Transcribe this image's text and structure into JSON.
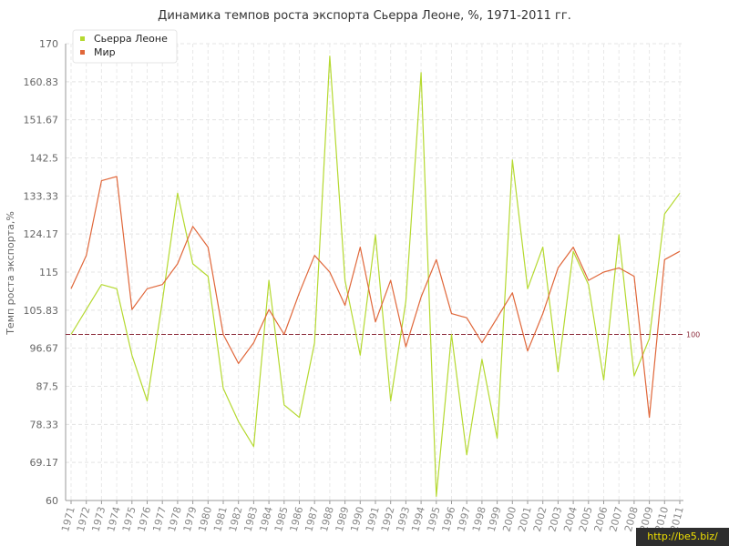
{
  "chart_data": {
    "type": "line",
    "title": "Динамика темпов роста экспорта Сьерра Леоне, %, 1971-2011 гг.",
    "ylabel": "Темп роста экспорта,%",
    "xlabel": "",
    "ylim": [
      60,
      170
    ],
    "yticks": [
      "60",
      "69.17",
      "78.33",
      "87.5",
      "96.67",
      "105.83",
      "115",
      "124.17",
      "133.33",
      "142.5",
      "151.67",
      "160.83",
      "170"
    ],
    "ytick_values": [
      60,
      69.17,
      78.33,
      87.5,
      96.67,
      105.83,
      115,
      124.17,
      133.33,
      142.5,
      151.67,
      160.83,
      170
    ],
    "x": [
      "1971",
      "1972",
      "1973",
      "1974",
      "1975",
      "1976",
      "1977",
      "1978",
      "1979",
      "1980",
      "1981",
      "1982",
      "1983",
      "1984",
      "1985",
      "1986",
      "1987",
      "1988",
      "1989",
      "1990",
      "1991",
      "1992",
      "1993",
      "1994",
      "1995",
      "1996",
      "1997",
      "1998",
      "1999",
      "2000",
      "2001",
      "2002",
      "2003",
      "2004",
      "2005",
      "2006",
      "2007",
      "2008",
      "2009",
      "2010",
      "2011"
    ],
    "reference_line": {
      "value": 100,
      "label": "100",
      "color": "#8b2a3a"
    },
    "grid": true,
    "legend_position": "top-left",
    "series": [
      {
        "name": "Сьерра Леоне",
        "color": "#b5d930",
        "values": [
          100,
          106,
          112,
          111,
          95,
          84,
          108,
          134,
          117,
          114,
          87,
          79,
          73,
          113,
          83,
          80,
          98,
          167,
          113,
          95,
          124,
          84,
          108,
          163,
          61,
          100,
          71,
          94,
          75,
          142,
          111,
          121,
          91,
          120,
          112,
          89,
          124,
          90,
          99,
          129,
          134
        ]
      },
      {
        "name": "Мир",
        "color": "#e0673a",
        "values": [
          111,
          119,
          137,
          138,
          106,
          111,
          112,
          117,
          126,
          121,
          100,
          93,
          98,
          106,
          100,
          110,
          119,
          115,
          107,
          121,
          103,
          113,
          97,
          109,
          118,
          105,
          104,
          98,
          104,
          110,
          96,
          105,
          116,
          121,
          113,
          115,
          116,
          114,
          80,
          118,
          120
        ]
      }
    ]
  },
  "watermark": "http://be5.biz/"
}
